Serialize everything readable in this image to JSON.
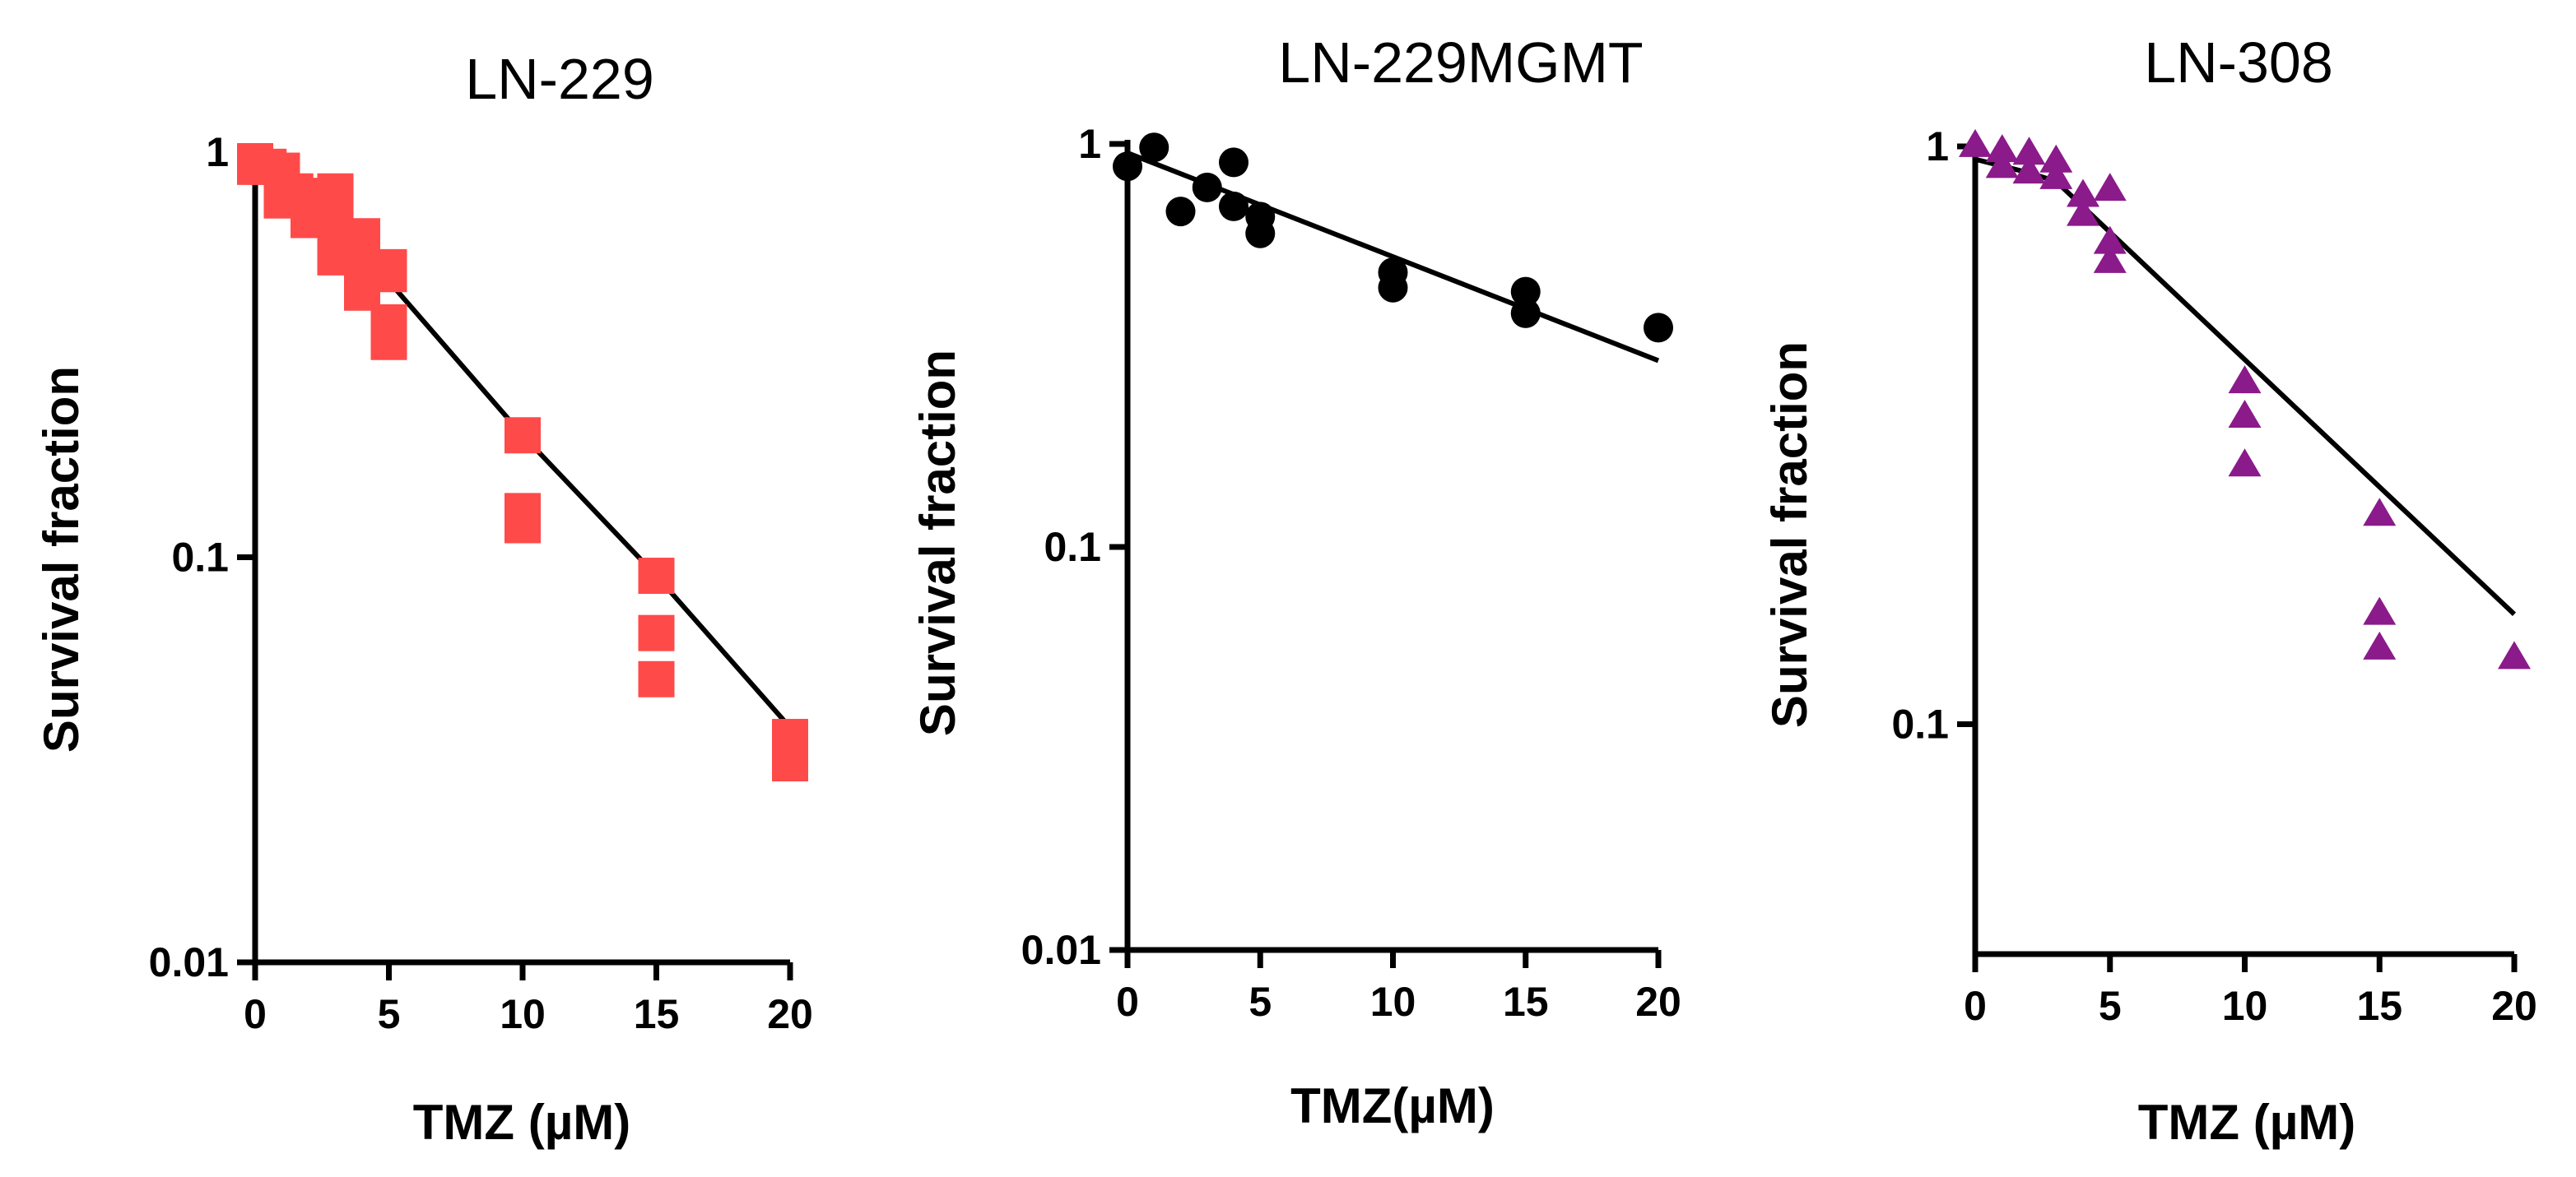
{
  "chart_data": [
    {
      "type": "scatter",
      "title": "LN-229",
      "xlabel": "TMZ (µM)",
      "ylabel": "Survival fraction",
      "xscale": "linear",
      "yscale": "log",
      "xlim": [
        0,
        20
      ],
      "ylim": [
        0.01,
        1
      ],
      "xticks": [
        0,
        5,
        10,
        15,
        20
      ],
      "xtick_labels": [
        "0",
        "5",
        "10",
        "15",
        "20"
      ],
      "yticks": [
        0.01,
        0.1,
        1
      ],
      "ytick_labels": [
        "0.01",
        "0.1",
        "1"
      ],
      "marker": "square",
      "color": "#ff4a4a",
      "points": [
        {
          "x": 0,
          "y": 0.95
        },
        {
          "x": 0,
          "y": 0.92
        },
        {
          "x": 0.5,
          "y": 0.92
        },
        {
          "x": 1,
          "y": 0.9
        },
        {
          "x": 1,
          "y": 0.85
        },
        {
          "x": 1,
          "y": 0.76
        },
        {
          "x": 1.5,
          "y": 0.8
        },
        {
          "x": 2,
          "y": 0.78
        },
        {
          "x": 2,
          "y": 0.72
        },
        {
          "x": 2,
          "y": 0.68
        },
        {
          "x": 3,
          "y": 0.8
        },
        {
          "x": 3,
          "y": 0.72
        },
        {
          "x": 3,
          "y": 0.63
        },
        {
          "x": 3,
          "y": 0.55
        },
        {
          "x": 4,
          "y": 0.62
        },
        {
          "x": 4,
          "y": 0.56
        },
        {
          "x": 4,
          "y": 0.5
        },
        {
          "x": 4,
          "y": 0.45
        },
        {
          "x": 5,
          "y": 0.52
        },
        {
          "x": 5,
          "y": 0.5
        },
        {
          "x": 5,
          "y": 0.38
        },
        {
          "x": 5,
          "y": 0.34
        },
        {
          "x": 10,
          "y": 0.2
        },
        {
          "x": 10,
          "y": 0.13
        },
        {
          "x": 10,
          "y": 0.12
        },
        {
          "x": 15,
          "y": 0.09
        },
        {
          "x": 15,
          "y": 0.065
        },
        {
          "x": 15,
          "y": 0.05
        },
        {
          "x": 20,
          "y": 0.036
        },
        {
          "x": 20,
          "y": 0.034
        },
        {
          "x": 20,
          "y": 0.031
        }
      ],
      "fit": {
        "x": [
          0,
          1,
          2,
          3,
          4,
          5,
          10,
          15,
          20
        ],
        "y": [
          0.95,
          0.85,
          0.75,
          0.65,
          0.56,
          0.48,
          0.2,
          0.09,
          0.038
        ]
      }
    },
    {
      "type": "scatter",
      "title": "LN-229MGMT",
      "xlabel": "TMZ(µM)",
      "ylabel": "Survival fraction",
      "xscale": "linear",
      "yscale": "log",
      "xlim": [
        0,
        20
      ],
      "ylim": [
        0.01,
        1
      ],
      "xticks": [
        0,
        5,
        10,
        15,
        20
      ],
      "xtick_labels": [
        "0",
        "5",
        "10",
        "15",
        "20"
      ],
      "yticks": [
        0.01,
        0.1,
        1
      ],
      "ytick_labels": [
        "0.01",
        "0.1",
        "1"
      ],
      "marker": "circle",
      "color": "#000000",
      "points": [
        {
          "x": 0,
          "y": 0.88
        },
        {
          "x": 1,
          "y": 0.98
        },
        {
          "x": 2,
          "y": 0.68
        },
        {
          "x": 3,
          "y": 0.78
        },
        {
          "x": 4,
          "y": 0.9
        },
        {
          "x": 4,
          "y": 0.7
        },
        {
          "x": 5,
          "y": 0.66
        },
        {
          "x": 5,
          "y": 0.6
        },
        {
          "x": 10,
          "y": 0.48
        },
        {
          "x": 10,
          "y": 0.44
        },
        {
          "x": 15,
          "y": 0.43
        },
        {
          "x": 15,
          "y": 0.38
        },
        {
          "x": 20,
          "y": 0.35
        }
      ],
      "fit": {
        "x": [
          0,
          20
        ],
        "y": [
          0.95,
          0.29
        ]
      }
    },
    {
      "type": "scatter",
      "title": "LN-308",
      "xlabel": "TMZ (µM)",
      "ylabel": "Survival fraction",
      "xscale": "linear",
      "yscale": "log",
      "xlim": [
        0,
        20
      ],
      "ylim": [
        0.04,
        1
      ],
      "xticks": [
        0,
        5,
        10,
        15,
        20
      ],
      "xtick_labels": [
        "0",
        "5",
        "10",
        "15",
        "20"
      ],
      "yticks": [
        0.1,
        1
      ],
      "ytick_labels": [
        "0.1",
        "1"
      ],
      "marker": "triangle",
      "color": "#8b1a8b",
      "points": [
        {
          "x": 0,
          "y": 1.0
        },
        {
          "x": 1,
          "y": 0.98
        },
        {
          "x": 1,
          "y": 0.92
        },
        {
          "x": 2,
          "y": 0.97
        },
        {
          "x": 2,
          "y": 0.9
        },
        {
          "x": 3,
          "y": 0.94
        },
        {
          "x": 3,
          "y": 0.88
        },
        {
          "x": 4,
          "y": 0.82
        },
        {
          "x": 4,
          "y": 0.76
        },
        {
          "x": 5,
          "y": 0.84
        },
        {
          "x": 5,
          "y": 0.68
        },
        {
          "x": 5,
          "y": 0.63
        },
        {
          "x": 10,
          "y": 0.39
        },
        {
          "x": 10,
          "y": 0.34
        },
        {
          "x": 10,
          "y": 0.28
        },
        {
          "x": 15,
          "y": 0.23
        },
        {
          "x": 15,
          "y": 0.155
        },
        {
          "x": 15,
          "y": 0.135
        },
        {
          "x": 20,
          "y": 0.13
        }
      ],
      "fit": {
        "x": [
          0,
          2,
          3,
          20
        ],
        "y": [
          0.95,
          0.9,
          0.87,
          0.155
        ]
      }
    }
  ]
}
